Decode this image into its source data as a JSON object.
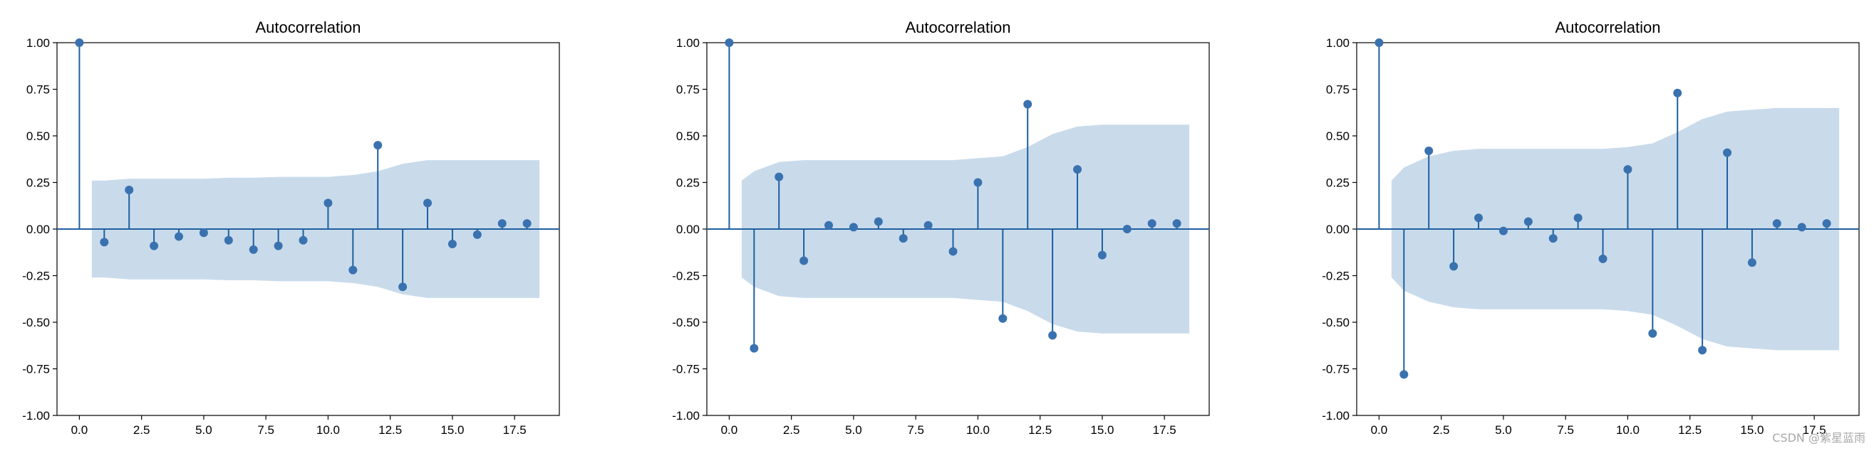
{
  "watermark": "CSDN @紫星蓝雨",
  "colors": {
    "stem": "#1f5f9f",
    "marker": "#3a72b0",
    "band": "#c9dbeb",
    "axes": "#000000"
  },
  "chart_data": [
    {
      "type": "stem",
      "title": "Autocorrelation",
      "xlabel": "",
      "ylabel": "",
      "xlim": [
        -0.9,
        19.3
      ],
      "ylim": [
        -1.0,
        1.0
      ],
      "xticks": [
        "0.0",
        "2.5",
        "5.0",
        "7.5",
        "10.0",
        "12.5",
        "15.0",
        "17.5"
      ],
      "yticks": [
        "1.00",
        "0.75",
        "0.50",
        "0.25",
        "0.00",
        "-0.25",
        "-0.50",
        "-0.75",
        "-1.00"
      ],
      "grid": false,
      "x": [
        0,
        1,
        2,
        3,
        4,
        5,
        6,
        7,
        8,
        9,
        10,
        11,
        12,
        13,
        14,
        15,
        16,
        17,
        18
      ],
      "values": [
        1.0,
        -0.07,
        0.21,
        -0.09,
        -0.04,
        -0.02,
        -0.06,
        -0.11,
        -0.09,
        -0.06,
        0.14,
        -0.22,
        0.45,
        -0.31,
        0.14,
        -0.08,
        -0.03,
        0.03,
        0.03
      ],
      "confint": [
        0.26,
        0.26,
        0.27,
        0.27,
        0.27,
        0.27,
        0.275,
        0.275,
        0.28,
        0.28,
        0.28,
        0.29,
        0.31,
        0.35,
        0.37,
        0.37,
        0.37,
        0.37,
        0.37
      ]
    },
    {
      "type": "stem",
      "title": "Autocorrelation",
      "xlabel": "",
      "ylabel": "",
      "xlim": [
        -0.9,
        19.3
      ],
      "ylim": [
        -1.0,
        1.0
      ],
      "xticks": [
        "0.0",
        "2.5",
        "5.0",
        "7.5",
        "10.0",
        "12.5",
        "15.0",
        "17.5"
      ],
      "yticks": [
        "1.00",
        "0.75",
        "0.50",
        "0.25",
        "0.00",
        "-0.25",
        "-0.50",
        "-0.75",
        "-1.00"
      ],
      "grid": false,
      "x": [
        0,
        1,
        2,
        3,
        4,
        5,
        6,
        7,
        8,
        9,
        10,
        11,
        12,
        13,
        14,
        15,
        16,
        17,
        18
      ],
      "values": [
        1.0,
        -0.64,
        0.28,
        -0.17,
        0.02,
        0.01,
        0.04,
        -0.05,
        0.02,
        -0.12,
        0.25,
        -0.48,
        0.67,
        -0.57,
        0.32,
        -0.14,
        0.0,
        0.03,
        0.03
      ],
      "confint": [
        0.26,
        0.31,
        0.36,
        0.37,
        0.37,
        0.37,
        0.37,
        0.37,
        0.37,
        0.37,
        0.38,
        0.39,
        0.44,
        0.51,
        0.55,
        0.56,
        0.56,
        0.56,
        0.56
      ]
    },
    {
      "type": "stem",
      "title": "Autocorrelation",
      "xlabel": "",
      "ylabel": "",
      "xlim": [
        -0.9,
        19.3
      ],
      "ylim": [
        -1.0,
        1.0
      ],
      "xticks": [
        "0.0",
        "2.5",
        "5.0",
        "7.5",
        "10.0",
        "12.5",
        "15.0",
        "17.5"
      ],
      "yticks": [
        "1.00",
        "0.75",
        "0.50",
        "0.25",
        "0.00",
        "-0.25",
        "-0.50",
        "-0.75",
        "-1.00"
      ],
      "grid": false,
      "x": [
        0,
        1,
        2,
        3,
        4,
        5,
        6,
        7,
        8,
        9,
        10,
        11,
        12,
        13,
        14,
        15,
        16,
        17,
        18
      ],
      "values": [
        1.0,
        -0.78,
        0.42,
        -0.2,
        0.06,
        -0.01,
        0.04,
        -0.05,
        0.06,
        -0.16,
        0.32,
        -0.56,
        0.73,
        -0.65,
        0.41,
        -0.18,
        0.03,
        0.01,
        0.03
      ],
      "confint": [
        0.26,
        0.33,
        0.39,
        0.42,
        0.43,
        0.43,
        0.43,
        0.43,
        0.43,
        0.43,
        0.44,
        0.46,
        0.52,
        0.59,
        0.63,
        0.64,
        0.65,
        0.65,
        0.65
      ]
    }
  ]
}
